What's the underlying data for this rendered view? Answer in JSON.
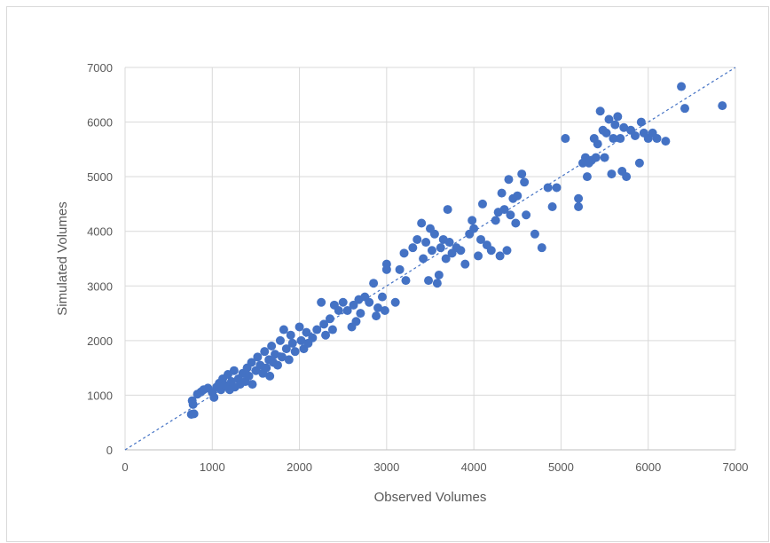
{
  "chart_data": {
    "type": "scatter",
    "title": "",
    "xlabel": "Observed Volumes",
    "ylabel": "Simulated Volumes",
    "xlim": [
      0,
      7000
    ],
    "ylim": [
      0,
      7000
    ],
    "x_ticks": [
      "0",
      "1000",
      "2000",
      "3000",
      "4000",
      "5000",
      "6000",
      "7000"
    ],
    "y_ticks": [
      "0",
      "1000",
      "2000",
      "3000",
      "4000",
      "5000",
      "6000",
      "7000"
    ],
    "grid": true,
    "legend": "none",
    "point_color": "#4472c4",
    "reference_line": {
      "style": "dashed",
      "color": "#4472c4",
      "from": [
        0,
        0
      ],
      "to": [
        7000,
        7000
      ]
    },
    "series": [
      {
        "points": [
          [
            760,
            650
          ],
          [
            790,
            660
          ],
          [
            780,
            830
          ],
          [
            770,
            900
          ],
          [
            830,
            1020
          ],
          [
            870,
            1060
          ],
          [
            900,
            1100
          ],
          [
            950,
            1130
          ],
          [
            1000,
            1050
          ],
          [
            1020,
            960
          ],
          [
            1050,
            1150
          ],
          [
            1080,
            1220
          ],
          [
            1100,
            1100
          ],
          [
            1120,
            1300
          ],
          [
            1150,
            1180
          ],
          [
            1180,
            1380
          ],
          [
            1200,
            1100
          ],
          [
            1220,
            1250
          ],
          [
            1250,
            1450
          ],
          [
            1260,
            1150
          ],
          [
            1300,
            1300
          ],
          [
            1320,
            1200
          ],
          [
            1350,
            1400
          ],
          [
            1380,
            1250
          ],
          [
            1400,
            1500
          ],
          [
            1420,
            1350
          ],
          [
            1450,
            1600
          ],
          [
            1460,
            1200
          ],
          [
            1500,
            1450
          ],
          [
            1520,
            1700
          ],
          [
            1550,
            1550
          ],
          [
            1580,
            1400
          ],
          [
            1600,
            1800
          ],
          [
            1620,
            1500
          ],
          [
            1650,
            1650
          ],
          [
            1660,
            1350
          ],
          [
            1680,
            1900
          ],
          [
            1700,
            1600
          ],
          [
            1720,
            1750
          ],
          [
            1750,
            1550
          ],
          [
            1780,
            2000
          ],
          [
            1800,
            1700
          ],
          [
            1820,
            2200
          ],
          [
            1850,
            1850
          ],
          [
            1880,
            1650
          ],
          [
            1900,
            2100
          ],
          [
            1920,
            1950
          ],
          [
            1950,
            1800
          ],
          [
            2000,
            2250
          ],
          [
            2020,
            2000
          ],
          [
            2050,
            1850
          ],
          [
            2080,
            2150
          ],
          [
            2100,
            1950
          ],
          [
            2150,
            2050
          ],
          [
            2200,
            2200
          ],
          [
            2250,
            2700
          ],
          [
            2280,
            2300
          ],
          [
            2300,
            2100
          ],
          [
            2350,
            2400
          ],
          [
            2380,
            2200
          ],
          [
            2400,
            2650
          ],
          [
            2450,
            2550
          ],
          [
            2500,
            2700
          ],
          [
            2550,
            2550
          ],
          [
            2600,
            2250
          ],
          [
            2620,
            2650
          ],
          [
            2650,
            2350
          ],
          [
            2680,
            2750
          ],
          [
            2700,
            2500
          ],
          [
            2750,
            2800
          ],
          [
            2800,
            2700
          ],
          [
            2850,
            3050
          ],
          [
            2880,
            2450
          ],
          [
            2900,
            2600
          ],
          [
            2950,
            2800
          ],
          [
            2980,
            2550
          ],
          [
            3000,
            3300
          ],
          [
            3000,
            3400
          ],
          [
            3100,
            2700
          ],
          [
            3150,
            3300
          ],
          [
            3200,
            3600
          ],
          [
            3220,
            3100
          ],
          [
            3300,
            3700
          ],
          [
            3350,
            3850
          ],
          [
            3400,
            4150
          ],
          [
            3420,
            3500
          ],
          [
            3450,
            3800
          ],
          [
            3480,
            3100
          ],
          [
            3500,
            4050
          ],
          [
            3520,
            3650
          ],
          [
            3550,
            3950
          ],
          [
            3580,
            3050
          ],
          [
            3600,
            3200
          ],
          [
            3620,
            3700
          ],
          [
            3650,
            3850
          ],
          [
            3680,
            3500
          ],
          [
            3700,
            4400
          ],
          [
            3720,
            3800
          ],
          [
            3750,
            3600
          ],
          [
            3800,
            3700
          ],
          [
            3850,
            3650
          ],
          [
            3900,
            3400
          ],
          [
            3950,
            3950
          ],
          [
            3980,
            4200
          ],
          [
            4000,
            4050
          ],
          [
            4050,
            3550
          ],
          [
            4080,
            3850
          ],
          [
            4100,
            4500
          ],
          [
            4150,
            3750
          ],
          [
            4200,
            3650
          ],
          [
            4250,
            4200
          ],
          [
            4280,
            4350
          ],
          [
            4300,
            3550
          ],
          [
            4320,
            4700
          ],
          [
            4350,
            4400
          ],
          [
            4380,
            3650
          ],
          [
            4400,
            4950
          ],
          [
            4420,
            4300
          ],
          [
            4450,
            4600
          ],
          [
            4480,
            4150
          ],
          [
            4500,
            4650
          ],
          [
            4550,
            5050
          ],
          [
            4580,
            4900
          ],
          [
            4600,
            4300
          ],
          [
            4700,
            3950
          ],
          [
            4780,
            3700
          ],
          [
            4850,
            4800
          ],
          [
            4900,
            4450
          ],
          [
            4950,
            4800
          ],
          [
            5050,
            5700
          ],
          [
            5200,
            4450
          ],
          [
            5200,
            4600
          ],
          [
            5250,
            5250
          ],
          [
            5280,
            5350
          ],
          [
            5300,
            5000
          ],
          [
            5320,
            5250
          ],
          [
            5350,
            5300
          ],
          [
            5380,
            5700
          ],
          [
            5400,
            5350
          ],
          [
            5420,
            5600
          ],
          [
            5450,
            6200
          ],
          [
            5480,
            5850
          ],
          [
            5500,
            5350
          ],
          [
            5520,
            5800
          ],
          [
            5550,
            6050
          ],
          [
            5580,
            5050
          ],
          [
            5600,
            5700
          ],
          [
            5620,
            5950
          ],
          [
            5650,
            6100
          ],
          [
            5680,
            5700
          ],
          [
            5700,
            5100
          ],
          [
            5720,
            5900
          ],
          [
            5750,
            5000
          ],
          [
            5800,
            5850
          ],
          [
            5850,
            5750
          ],
          [
            5900,
            5250
          ],
          [
            5920,
            6000
          ],
          [
            5950,
            5800
          ],
          [
            6000,
            5700
          ],
          [
            6050,
            5800
          ],
          [
            6100,
            5700
          ],
          [
            6200,
            5650
          ],
          [
            6380,
            6650
          ],
          [
            6420,
            6250
          ],
          [
            6850,
            6300
          ]
        ]
      }
    ]
  }
}
